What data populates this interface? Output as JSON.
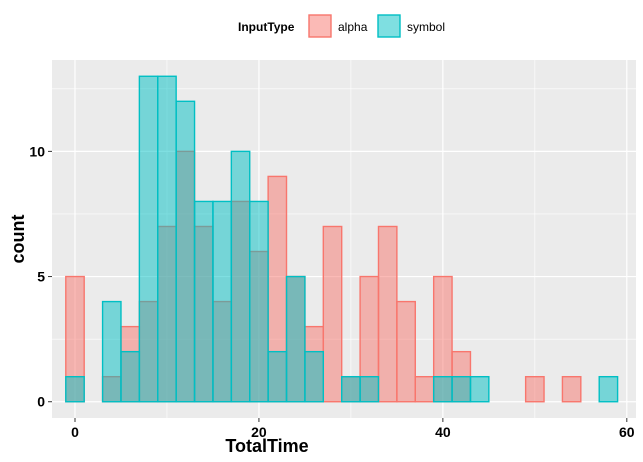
{
  "chart_data": {
    "type": "bar",
    "subtype": "overlapping-histogram",
    "xlabel": "TotalTime",
    "ylabel": "count",
    "xlim": [
      -2.5,
      61
    ],
    "ylim": [
      -0.65,
      13.65
    ],
    "x_ticks": [
      0,
      20,
      40,
      60
    ],
    "y_ticks": [
      0,
      5,
      10
    ],
    "bin_width": 2,
    "grid": true,
    "legend": {
      "title": "InputType",
      "position": "top"
    },
    "x": [
      0,
      2,
      4,
      6,
      8,
      10,
      12,
      14,
      16,
      18,
      20,
      22,
      24,
      26,
      28,
      30,
      32,
      34,
      36,
      38,
      40,
      42,
      44,
      46,
      48,
      50,
      52,
      54,
      56,
      58
    ],
    "series": [
      {
        "name": "alpha",
        "color": "#F8766D",
        "values": [
          5,
          0,
          1,
          3,
          4,
          7,
          10,
          7,
          4,
          8,
          6,
          9,
          5,
          3,
          7,
          1,
          5,
          7,
          4,
          1,
          5,
          2,
          0,
          0,
          0,
          1,
          0,
          1,
          0,
          0
        ]
      },
      {
        "name": "symbol",
        "color": "#00BFC4",
        "values": [
          1,
          0,
          4,
          2,
          13,
          13,
          12,
          8,
          8,
          10,
          8,
          2,
          5,
          2,
          0,
          1,
          1,
          0,
          0,
          0,
          1,
          1,
          1,
          0,
          0,
          0,
          0,
          0,
          0,
          1
        ]
      }
    ]
  }
}
